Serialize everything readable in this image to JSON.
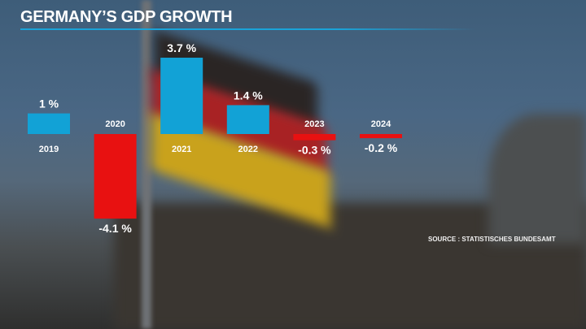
{
  "title": "GERMANY’S GDP GROWTH",
  "source": "SOURCE : STATISTISCHES BUNDESAMT",
  "colors": {
    "positive": "#12a2d6",
    "negative": "#e81111",
    "accent_rule": "#1aa3d8"
  },
  "chart_data": {
    "type": "bar",
    "title": "GERMANY’S GDP GROWTH",
    "categories": [
      "2019",
      "2020",
      "2021",
      "2022",
      "2023",
      "2024"
    ],
    "values": [
      1,
      -4.1,
      3.7,
      1.4,
      -0.3,
      -0.2
    ],
    "value_labels": [
      "1 %",
      "-4.1 %",
      "3.7 %",
      "1.4 %",
      "-0.3 %",
      "-0.2 %"
    ],
    "unit": "%",
    "grid": false,
    "legend": "none"
  }
}
